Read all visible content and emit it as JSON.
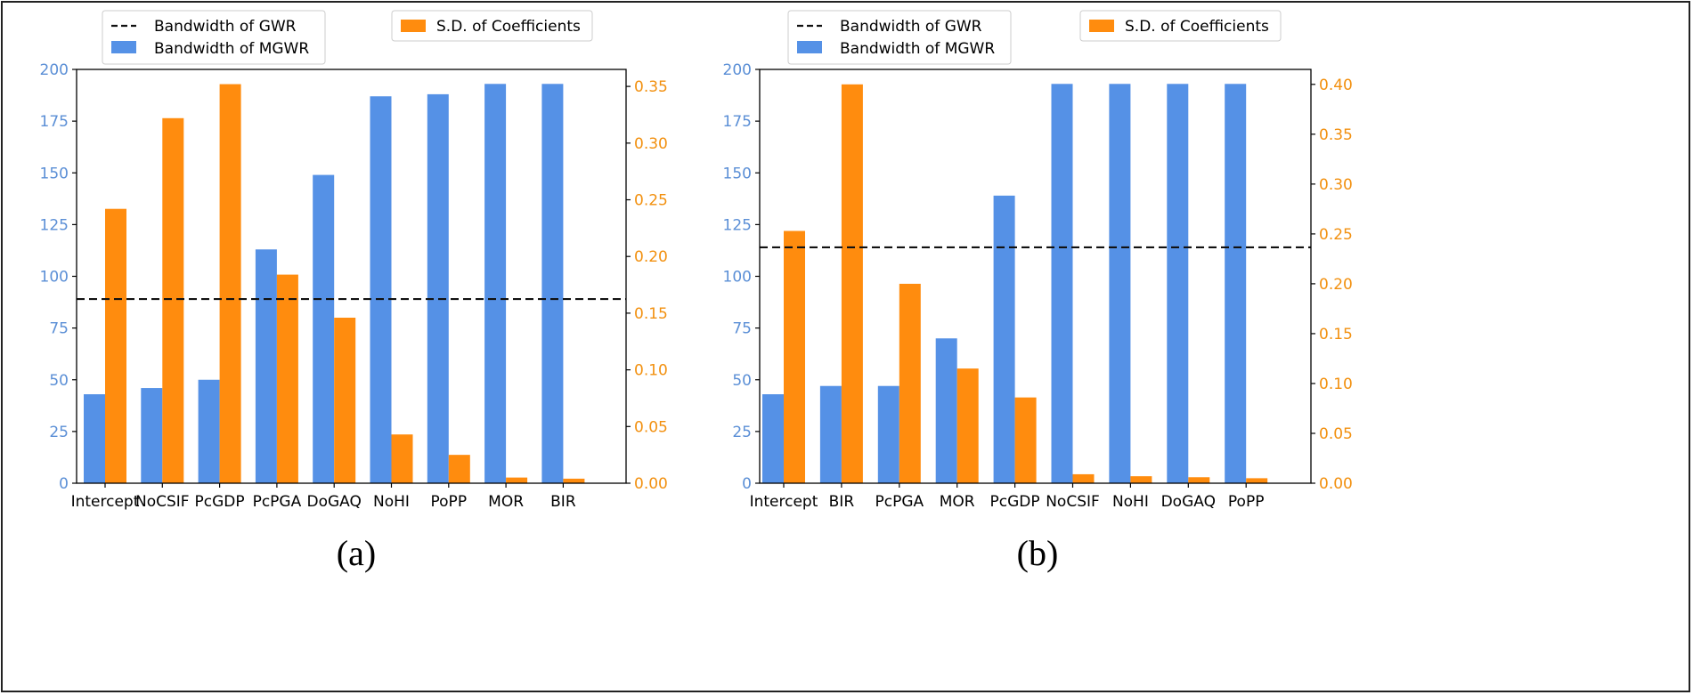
{
  "colors": {
    "mgwr": "#5591e6",
    "sd": "#ff8c0e",
    "gwr": "#111111",
    "left_tick": "#5b8fd6",
    "right_tick": "#f2900f"
  },
  "chart_data": [
    {
      "panel_label": "(a)",
      "type": "bar",
      "categories": [
        "Intercept",
        "NoCSIF",
        "PcGDP",
        "PcPGA",
        "DoGAQ",
        "NoHI",
        "PoPP",
        "MOR",
        "BIR"
      ],
      "series": [
        {
          "name": "Bandwidth of MGWR",
          "axis": "left",
          "values": [
            43,
            46,
            50,
            113,
            149,
            187,
            188,
            193,
            193
          ]
        },
        {
          "name": "S.D. of Coefficients",
          "axis": "right",
          "values": [
            0.242,
            0.322,
            0.352,
            0.184,
            0.146,
            0.043,
            0.025,
            0.005,
            0.004
          ]
        }
      ],
      "reference_line": {
        "name": "Bandwidth of GWR",
        "axis": "left",
        "value": 89
      },
      "ylim_left": [
        0,
        200
      ],
      "ylim_right": [
        0,
        0.365
      ],
      "yticks_left": [
        "0",
        "25",
        "50",
        "75",
        "100",
        "125",
        "150",
        "175",
        "200"
      ],
      "yticks_left_values": [
        0,
        25,
        50,
        75,
        100,
        125,
        150,
        175,
        200
      ],
      "yticks_right": [
        "0.00",
        "0.05",
        "0.10",
        "0.15",
        "0.20",
        "0.25",
        "0.30",
        "0.35"
      ],
      "yticks_right_values": [
        0,
        0.05,
        0.1,
        0.15,
        0.2,
        0.25,
        0.3,
        0.35
      ],
      "legend": [
        "Bandwidth of GWR",
        "Bandwidth of MGWR",
        "S.D. of Coefficients"
      ]
    },
    {
      "panel_label": "(b)",
      "type": "bar",
      "categories": [
        "Intercept",
        "BIR",
        "PcPGA",
        "MOR",
        "PcGDP",
        "NoCSIF",
        "NoHI",
        "DoGAQ",
        "PoPP"
      ],
      "series": [
        {
          "name": "Bandwidth of MGWR",
          "axis": "left",
          "values": [
            43,
            47,
            47,
            70,
            139,
            193,
            193,
            193,
            193
          ]
        },
        {
          "name": "S.D. of Coefficients",
          "axis": "right",
          "values": [
            0.253,
            0.4,
            0.2,
            0.115,
            0.086,
            0.009,
            0.007,
            0.006,
            0.005
          ]
        }
      ],
      "reference_line": {
        "name": "Bandwidth of GWR",
        "axis": "left",
        "value": 114
      },
      "ylim_left": [
        0,
        200
      ],
      "ylim_right": [
        0,
        0.415
      ],
      "yticks_left": [
        "0",
        "25",
        "50",
        "75",
        "100",
        "125",
        "150",
        "175",
        "200"
      ],
      "yticks_left_values": [
        0,
        25,
        50,
        75,
        100,
        125,
        150,
        175,
        200
      ],
      "yticks_right": [
        "0.00",
        "0.05",
        "0.10",
        "0.15",
        "0.20",
        "0.25",
        "0.30",
        "0.35",
        "0.40"
      ],
      "yticks_right_values": [
        0,
        0.05,
        0.1,
        0.15,
        0.2,
        0.25,
        0.3,
        0.35,
        0.4
      ],
      "legend": [
        "Bandwidth of GWR",
        "Bandwidth of MGWR",
        "S.D. of Coefficients"
      ]
    }
  ]
}
